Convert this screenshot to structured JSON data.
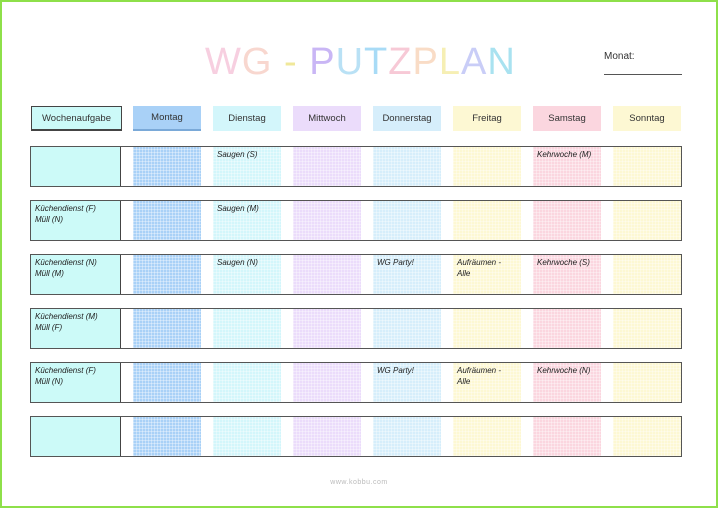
{
  "title": {
    "letters": [
      {
        "char": "W",
        "color": "#f7cfe0"
      },
      {
        "char": "G",
        "color": "#f8d7cf"
      },
      {
        "char": " ",
        "color": "#ffffff"
      },
      {
        "char": "-",
        "color": "#f0e89a"
      },
      {
        "char": " ",
        "color": "#ffffff"
      },
      {
        "char": "P",
        "color": "#c9b6f5"
      },
      {
        "char": "U",
        "color": "#b9e1f5"
      },
      {
        "char": "T",
        "color": "#a8dbf6"
      },
      {
        "char": "Z",
        "color": "#f7c9d6"
      },
      {
        "char": "P",
        "color": "#f9dcc6"
      },
      {
        "char": "L",
        "color": "#f6efb4"
      },
      {
        "char": "A",
        "color": "#c9cdf7"
      },
      {
        "char": "N",
        "color": "#a9e2f0"
      }
    ]
  },
  "month_label": "Monat:",
  "columns": {
    "task_header": "Wochenaufgabe",
    "days": [
      {
        "label": "Montag",
        "color": "#a9d1f7"
      },
      {
        "label": "Dienstag",
        "color": "#d3f6fb"
      },
      {
        "label": "Mittwoch",
        "color": "#ebdcfb"
      },
      {
        "label": "Donnerstag",
        "color": "#d6eefb"
      },
      {
        "label": "Freitag",
        "color": "#fdf8d3"
      },
      {
        "label": "Samstag",
        "color": "#fbd6df"
      },
      {
        "label": "Sonntag",
        "color": "#fdf8d3"
      }
    ]
  },
  "rows": [
    {
      "task": "",
      "cells": [
        "",
        "Saugen (S)",
        "",
        "",
        "",
        "Kehrwoche (M)",
        ""
      ]
    },
    {
      "task": "Küchendienst (F)\nMüll (N)",
      "cells": [
        "",
        "Saugen (M)",
        "",
        "",
        "",
        "",
        ""
      ]
    },
    {
      "task": "Küchendienst (N)\nMüll (M)",
      "cells": [
        "",
        "Saugen (N)",
        "",
        "WG Party!",
        "Aufräumen -\nAlle",
        "Kehrwoche (S)",
        ""
      ]
    },
    {
      "task": "Küchendienst (M)\nMüll (F)",
      "cells": [
        "",
        "",
        "",
        "",
        "",
        "",
        ""
      ]
    },
    {
      "task": " Küchendienst (F)\nMüll (N)",
      "cells": [
        "",
        "",
        "",
        "WG Party!",
        "Aufräumen -\nAlle",
        "Kehrwoche (N)",
        ""
      ]
    },
    {
      "task": "",
      "cells": [
        "",
        "",
        "",
        "",
        "",
        "",
        ""
      ]
    }
  ],
  "footer": "www.kobbu.com"
}
